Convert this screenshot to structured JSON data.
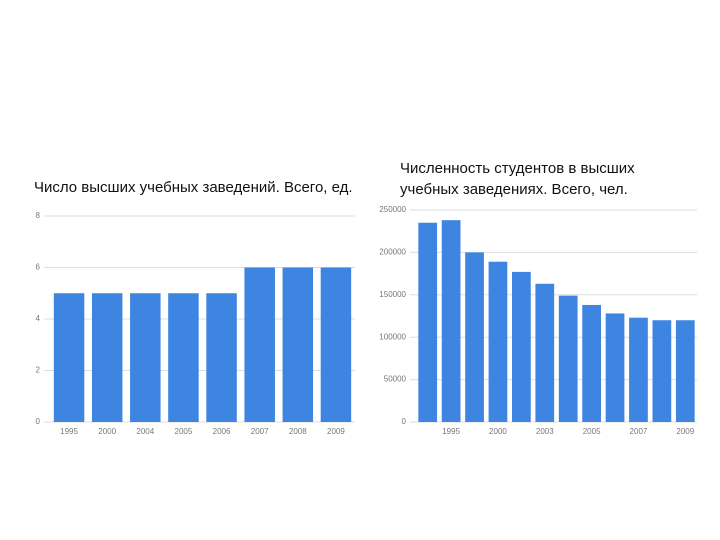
{
  "chart_data": [
    {
      "type": "bar",
      "title": "Число высших учебных заведений. Всего, ед.",
      "categories": [
        "1995",
        "2000",
        "2004",
        "2005",
        "2006",
        "2007",
        "2008",
        "2009"
      ],
      "values": [
        5,
        5,
        5,
        5,
        5,
        6,
        6,
        6
      ],
      "color": "#3d85e0",
      "ylim": [
        0,
        8
      ],
      "yticks": [
        0,
        2,
        4,
        6,
        8
      ],
      "grid": true
    },
    {
      "type": "bar",
      "title": "Численность студентов в высших учебных заведениях. Всего, чел.",
      "categories": [
        null,
        "1995",
        null,
        "2000",
        null,
        "2003",
        null,
        "2005",
        null,
        "2007",
        null,
        "2009"
      ],
      "values": [
        235000,
        238000,
        200000,
        189000,
        177000,
        163000,
        149000,
        138000,
        128000,
        123000,
        120000,
        120000
      ],
      "color": "#3d85e0",
      "ylim": [
        0,
        250000
      ],
      "yticks": [
        0,
        50000,
        100000,
        150000,
        200000,
        250000
      ],
      "grid": true
    }
  ]
}
